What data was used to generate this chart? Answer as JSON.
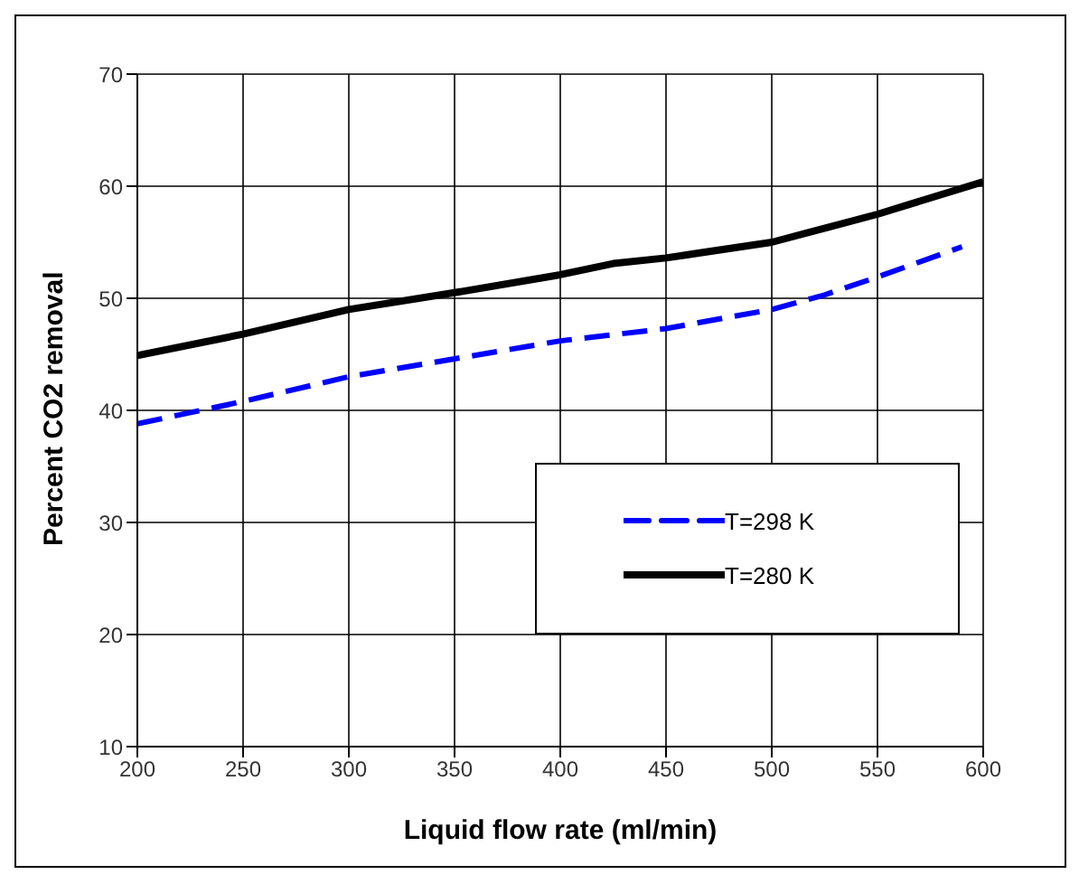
{
  "chart_data": {
    "type": "line",
    "xlabel": "Liquid flow rate (ml/min)",
    "ylabel": "Percent CO2 removal",
    "xlim": [
      200,
      600
    ],
    "xticks": [
      200,
      250,
      300,
      350,
      400,
      450,
      500,
      550,
      600
    ],
    "ylim": [
      10,
      70
    ],
    "yticks": [
      10,
      20,
      30,
      40,
      50,
      60,
      70
    ],
    "grid": true,
    "legend": "bottom right",
    "marker": "none",
    "series": [
      {
        "name": "T=298 K",
        "color": "#0000ff",
        "line_style": "dashed",
        "x": [
          200,
          250,
          300,
          350,
          400,
          450,
          500,
          525,
          550,
          590
        ],
        "values": [
          38.8,
          40.8,
          43.0,
          44.6,
          46.2,
          47.3,
          49.0,
          50.3,
          51.9,
          54.6
        ]
      },
      {
        "name": "T=280 K",
        "color": "#000000",
        "line_style": "solid",
        "x": [
          200,
          250,
          300,
          350,
          400,
          425,
          450,
          500,
          550,
          600
        ],
        "values": [
          44.9,
          46.8,
          49.0,
          50.5,
          52.1,
          53.1,
          53.6,
          55.0,
          57.5,
          60.4
        ]
      }
    ]
  }
}
